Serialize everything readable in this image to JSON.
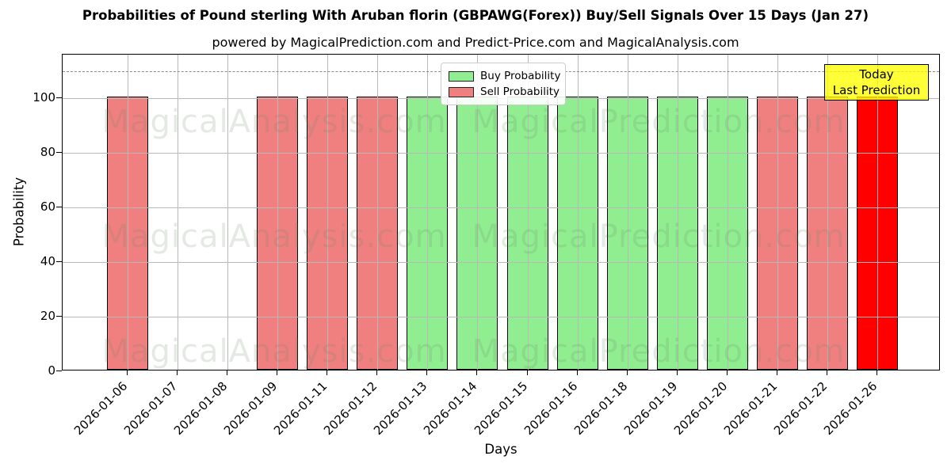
{
  "chart_data": {
    "type": "bar",
    "title": "Probabilities of Pound sterling With Aruban florin (GBPAWG(Forex)) Buy/Sell Signals Over 15 Days (Jan 27)",
    "subtitle": "powered by MagicalPrediction.com and Predict-Price.com and MagicalAnalysis.com",
    "xlabel": "Days",
    "ylabel": "Probability",
    "ylim": [
      0,
      116
    ],
    "yticks": [
      0,
      20,
      40,
      60,
      80,
      100
    ],
    "grid": true,
    "dashed_line_y": 110,
    "legend": {
      "position": "upper center",
      "entries": [
        {
          "label": "Buy Probability",
          "color": "#90EE90"
        },
        {
          "label": "Sell Probability",
          "color": "#F08080"
        }
      ]
    },
    "annotation": {
      "lines": [
        "Today",
        "Last Prediction"
      ],
      "bg_color": "#FFFF00",
      "border_color": "#000000"
    },
    "colors": {
      "buy": "#90EE90",
      "sell": "#F08080",
      "today": "#FF0000",
      "bar_edge": "#000000"
    },
    "categories": [
      "2026-01-06",
      "2026-01-07",
      "2026-01-08",
      "2026-01-09",
      "2026-01-11",
      "2026-01-12",
      "2026-01-13",
      "2026-01-14",
      "2026-01-15",
      "2026-01-16",
      "2026-01-18",
      "2026-01-19",
      "2026-01-20",
      "2026-01-21",
      "2026-01-22",
      "2026-01-26"
    ],
    "bars": [
      {
        "date": "2026-01-06",
        "value": 100,
        "kind": "sell"
      },
      {
        "date": "2026-01-07",
        "value": 0,
        "kind": "none"
      },
      {
        "date": "2026-01-08",
        "value": 0,
        "kind": "none"
      },
      {
        "date": "2026-01-09",
        "value": 100,
        "kind": "sell"
      },
      {
        "date": "2026-01-11",
        "value": 100,
        "kind": "sell"
      },
      {
        "date": "2026-01-12",
        "value": 100,
        "kind": "sell"
      },
      {
        "date": "2026-01-13",
        "value": 100,
        "kind": "buy"
      },
      {
        "date": "2026-01-14",
        "value": 100,
        "kind": "buy"
      },
      {
        "date": "2026-01-15",
        "value": 100,
        "kind": "buy"
      },
      {
        "date": "2026-01-16",
        "value": 100,
        "kind": "buy"
      },
      {
        "date": "2026-01-18",
        "value": 100,
        "kind": "buy"
      },
      {
        "date": "2026-01-19",
        "value": 100,
        "kind": "buy"
      },
      {
        "date": "2026-01-20",
        "value": 100,
        "kind": "buy"
      },
      {
        "date": "2026-01-21",
        "value": 100,
        "kind": "sell"
      },
      {
        "date": "2026-01-22",
        "value": 100,
        "kind": "sell"
      },
      {
        "date": "2026-01-26",
        "value": 100,
        "kind": "today"
      }
    ],
    "watermarks": {
      "texts": [
        "MagicalAnalysis.com",
        "MagicalPrediction.com"
      ],
      "rows": 3
    }
  }
}
